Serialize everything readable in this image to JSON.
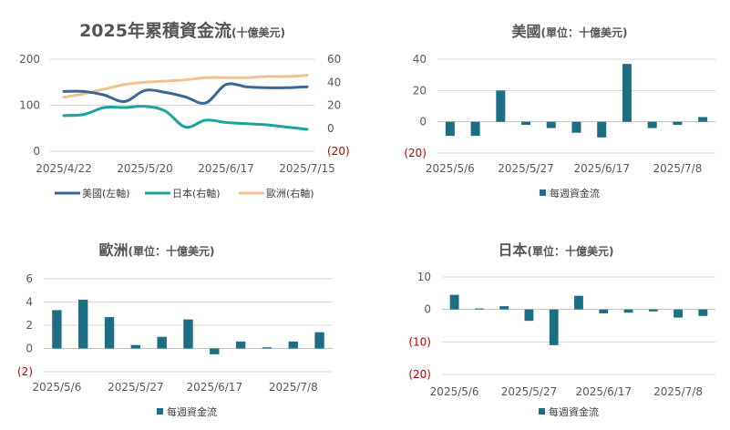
{
  "colors": {
    "us": "#3b6796",
    "japan": "#1ba39c",
    "europe": "#f0c38e",
    "bar": "#1b6e84",
    "negative": "#c00000"
  },
  "chart_data": [
    {
      "id": "cumulative",
      "type": "line",
      "title": "2025年累積資金流",
      "subtitle": "(十億美元)",
      "x_labels": [
        "2025/4/22",
        "2025/5/20",
        "2025/6/17",
        "2025/7/15"
      ],
      "x": [
        "2025/4/22",
        "2025/4/29",
        "2025/5/6",
        "2025/5/13",
        "2025/5/20",
        "2025/5/27",
        "2025/6/3",
        "2025/6/10",
        "2025/6/17",
        "2025/6/24",
        "2025/7/1",
        "2025/7/8",
        "2025/7/15"
      ],
      "left_axis": {
        "ticks": [
          "200",
          "100",
          "0"
        ],
        "ylim": [
          0,
          200
        ]
      },
      "right_axis": {
        "ticks": [
          "60",
          "40",
          "20",
          "0",
          "(20)"
        ],
        "ylim": [
          -20,
          60
        ]
      },
      "series": [
        {
          "name": "美國(左軸)",
          "axis": "left",
          "color_key": "us",
          "values": [
            130,
            130,
            122,
            108,
            132,
            128,
            118,
            105,
            145,
            140,
            138,
            138,
            140
          ]
        },
        {
          "name": "日本(右軸)",
          "axis": "right",
          "color_key": "japan",
          "values": [
            11,
            12,
            18,
            18,
            19,
            15,
            1,
            7,
            5,
            4,
            3,
            1,
            -1
          ]
        },
        {
          "name": "歐洲(右軸)",
          "axis": "right",
          "color_key": "europe",
          "values": [
            27,
            30,
            34,
            38,
            40,
            41,
            42,
            44,
            44,
            44,
            45,
            45,
            46
          ]
        }
      ]
    },
    {
      "id": "us",
      "type": "bar",
      "title": "美國",
      "subtitle": "(單位：十億美元)",
      "ylim": [
        -20,
        40
      ],
      "y_ticks": [
        "40",
        "20",
        "0",
        "(20)"
      ],
      "x_labels": [
        "2025/5/6",
        "2025/5/27",
        "2025/6/17",
        "2025/7/8"
      ],
      "legend": "每週資金流",
      "values": [
        -9,
        -9,
        20,
        -2,
        -4,
        -7,
        -10,
        37,
        -4,
        -2,
        3
      ]
    },
    {
      "id": "europe",
      "type": "bar",
      "title": "歐洲",
      "subtitle": "(單位：十億美元)",
      "ylim": [
        -2,
        6
      ],
      "y_ticks": [
        "6",
        "4",
        "2",
        "0",
        "(2)"
      ],
      "x_labels": [
        "2025/5/6",
        "2025/5/27",
        "2025/6/17",
        "2025/7/8"
      ],
      "legend": "每週資金流",
      "values": [
        3.3,
        4.2,
        2.7,
        0.3,
        1.0,
        2.5,
        -0.5,
        0.6,
        0.1,
        0.6,
        1.4
      ]
    },
    {
      "id": "japan",
      "type": "bar",
      "title": "日本",
      "subtitle": "(單位：十億美元)",
      "ylim": [
        -20,
        10
      ],
      "y_ticks": [
        "10",
        "0",
        "(10)",
        "(20)"
      ],
      "x_labels": [
        "2025/5/6",
        "2025/5/27",
        "2025/6/17",
        "2025/7/8"
      ],
      "legend": "每週資金流",
      "values": [
        4.5,
        0.3,
        1.0,
        -3.5,
        -11,
        4.2,
        -1.2,
        -1.0,
        -0.6,
        -2.5,
        -2.0
      ]
    }
  ]
}
